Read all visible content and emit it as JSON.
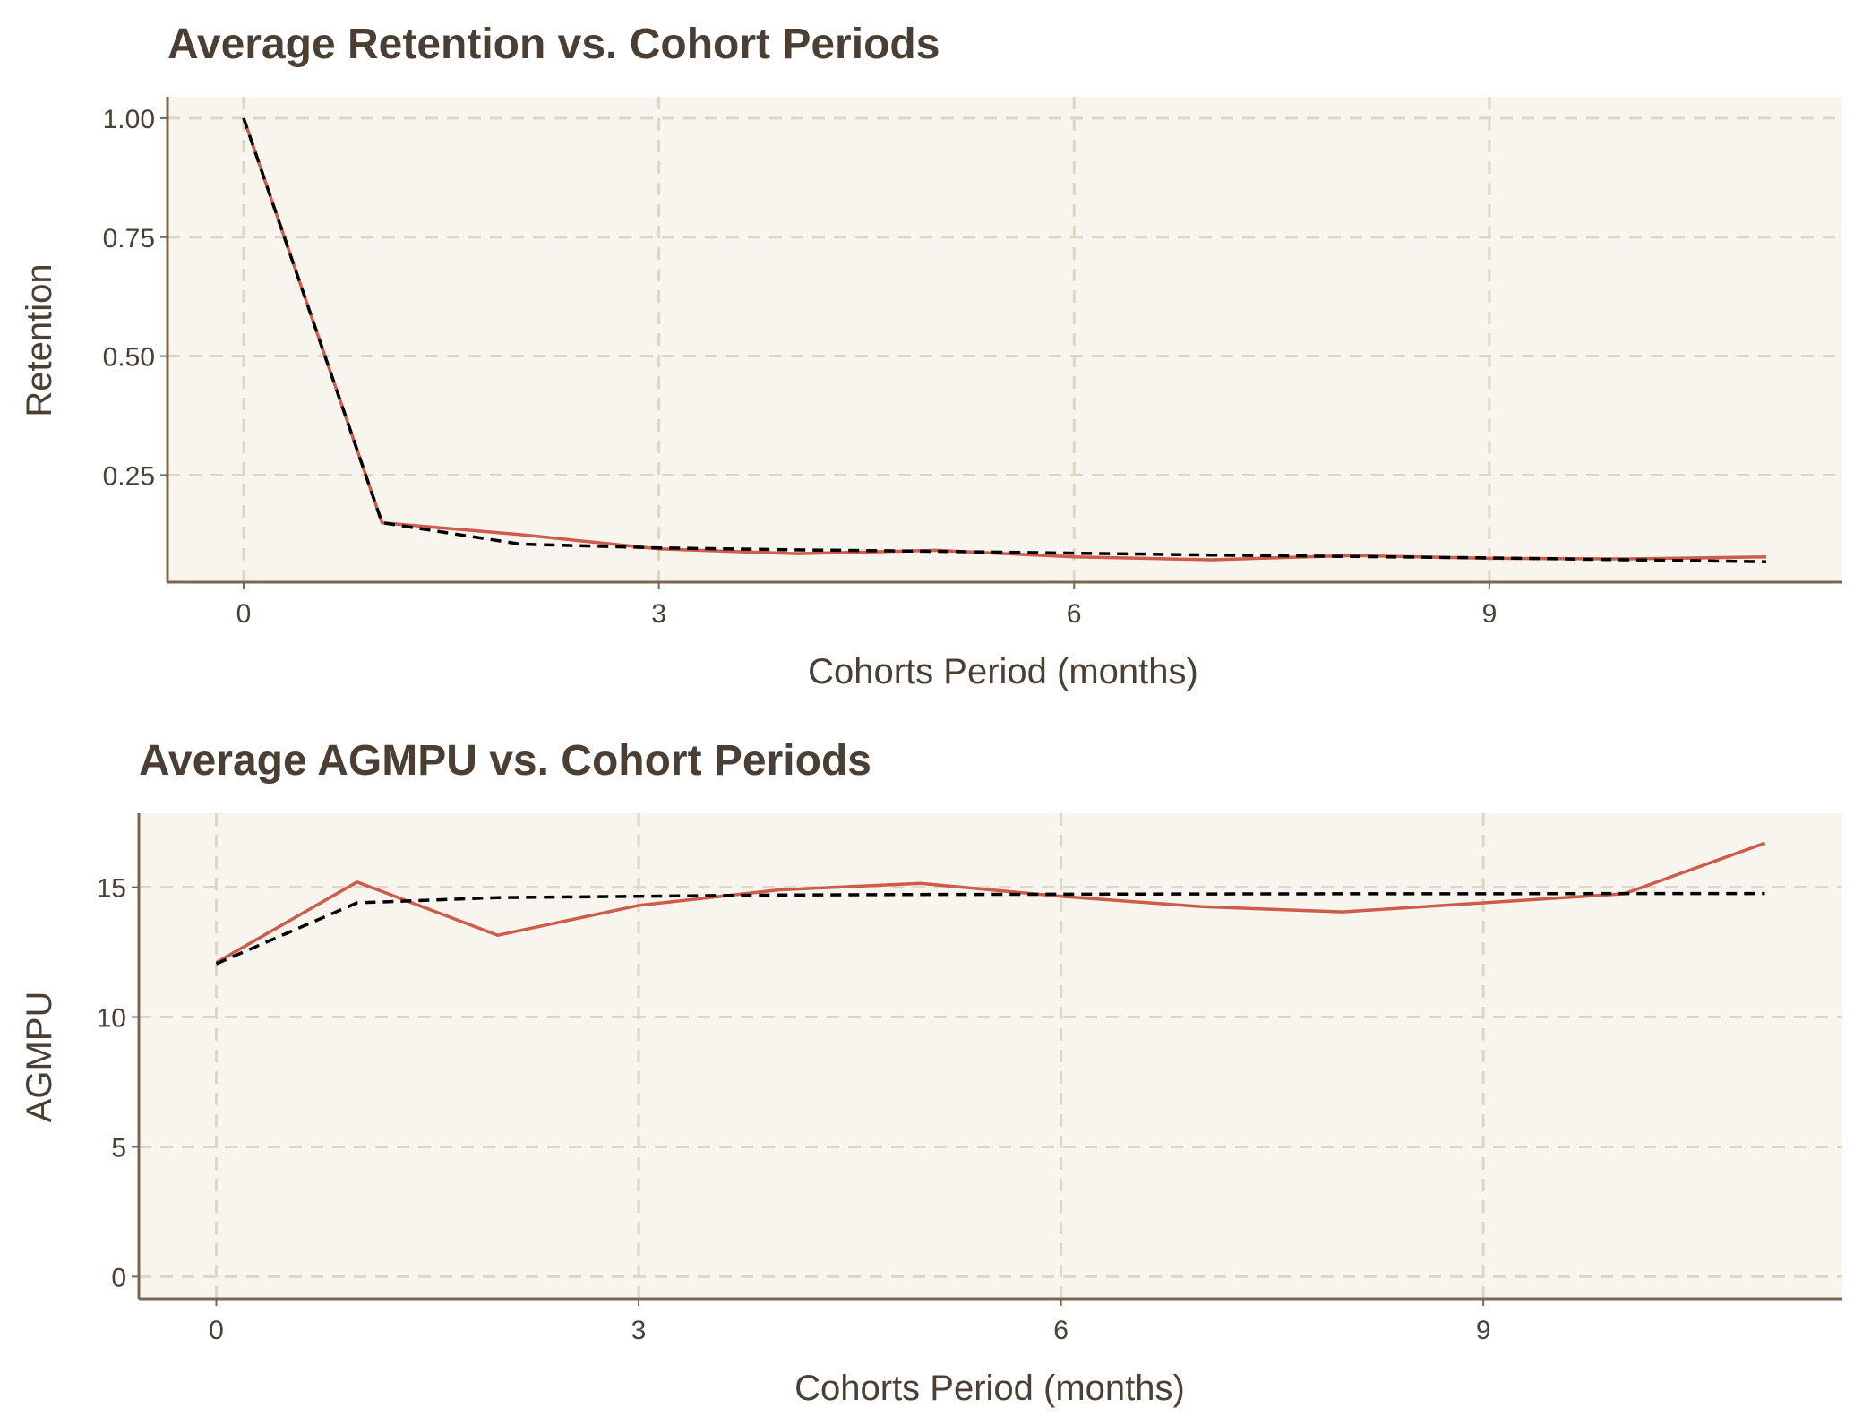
{
  "colors": {
    "actual": "#cd5c4a",
    "fitted": "#000000"
  },
  "chart_data": [
    {
      "type": "line",
      "title": "Average Retention vs. Cohort Periods",
      "xlabel": "Cohorts Period (months)",
      "ylabel": "Retention",
      "xlim": [
        -0.55,
        11.55
      ],
      "ylim": [
        0.025,
        1.045
      ],
      "xticks": [
        0,
        3,
        6,
        9
      ],
      "yticks": [
        0.25,
        0.5,
        0.75,
        1.0
      ],
      "ytick_labels": [
        "0.25",
        "0.50",
        "0.75",
        "1.00"
      ],
      "grid": true,
      "x": [
        0,
        1,
        2,
        3,
        4,
        5,
        6,
        7,
        8,
        9,
        10,
        11
      ],
      "series": [
        {
          "style": "solid",
          "values": [
            1.0,
            0.15,
            0.125,
            0.095,
            0.085,
            0.092,
            0.078,
            0.072,
            0.081,
            0.075,
            0.074,
            0.078
          ]
        },
        {
          "style": "dashed",
          "values": [
            1.0,
            0.15,
            0.105,
            0.097,
            0.093,
            0.09,
            0.086,
            0.082,
            0.079,
            0.076,
            0.072,
            0.068
          ]
        }
      ]
    },
    {
      "type": "line",
      "title": "Average AGMPU vs. Cohort Periods",
      "xlabel": "Cohorts Period (months)",
      "ylabel": "AGMPU",
      "xlim": [
        -0.55,
        11.55
      ],
      "ylim": [
        -0.85,
        17.85
      ],
      "xticks": [
        0,
        3,
        6,
        9
      ],
      "yticks": [
        0,
        5,
        10,
        15
      ],
      "ytick_labels": [
        "0",
        "5",
        "10",
        "15"
      ],
      "grid": true,
      "x": [
        0,
        1,
        2,
        3,
        4,
        5,
        6,
        7,
        8,
        9,
        10,
        11
      ],
      "series": [
        {
          "style": "solid",
          "values": [
            12.1,
            15.2,
            13.15,
            14.3,
            14.9,
            15.15,
            14.65,
            14.25,
            14.05,
            14.4,
            14.75,
            16.7
          ]
        },
        {
          "style": "dashed",
          "values": [
            12.05,
            14.4,
            14.6,
            14.65,
            14.7,
            14.72,
            14.73,
            14.74,
            14.75,
            14.75,
            14.76,
            14.76
          ]
        }
      ]
    }
  ]
}
